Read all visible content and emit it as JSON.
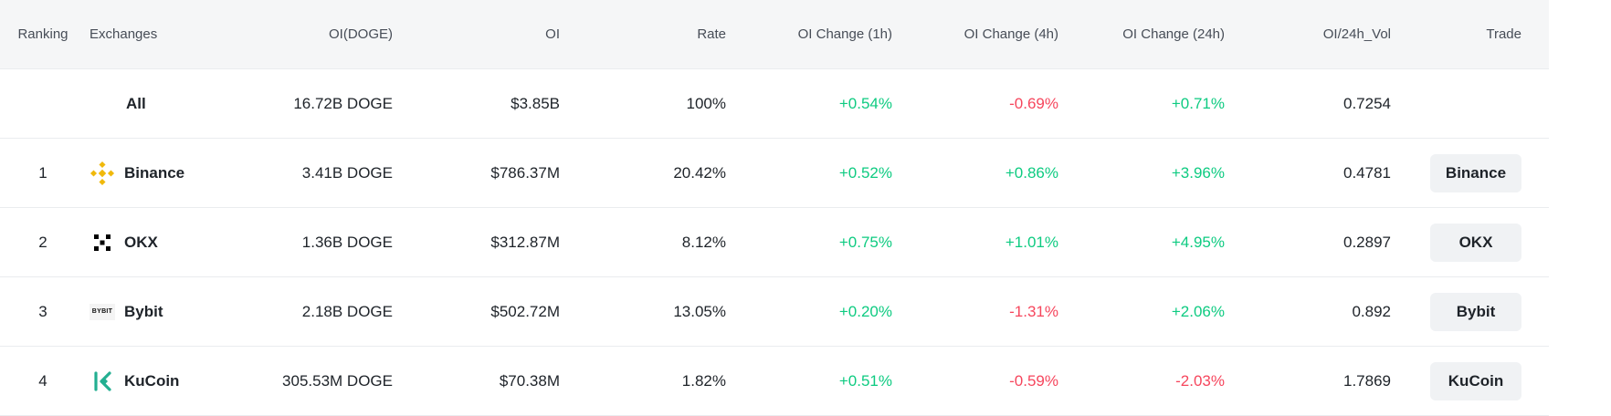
{
  "header": {
    "ranking": "Ranking",
    "exchanges": "Exchanges",
    "oi_doge": "OI(DOGE)",
    "oi": "OI",
    "rate": "Rate",
    "oi_change_1h": "OI Change (1h)",
    "oi_change_4h": "OI Change (4h)",
    "oi_change_24h": "OI Change (24h)",
    "oi_24h_vol": "OI/24h_Vol",
    "trade": "Trade"
  },
  "colors": {
    "positive": "#0ecb81",
    "negative": "#f6465d",
    "header_bg": "#f5f6f7"
  },
  "rows": [
    {
      "rank": "",
      "exchange": "All",
      "oi_doge": "16.72B DOGE",
      "oi": "$3.85B",
      "rate": "100%",
      "ch1": "+0.54%",
      "ch4": "-0.69%",
      "ch24": "+0.71%",
      "vol": "0.7254",
      "trade": ""
    },
    {
      "rank": "1",
      "exchange": "Binance",
      "icon": "binance-logo-icon",
      "oi_doge": "3.41B DOGE",
      "oi": "$786.37M",
      "rate": "20.42%",
      "ch1": "+0.52%",
      "ch4": "+0.86%",
      "ch24": "+3.96%",
      "vol": "0.4781",
      "trade": "Binance"
    },
    {
      "rank": "2",
      "exchange": "OKX",
      "icon": "okx-logo-icon",
      "oi_doge": "1.36B DOGE",
      "oi": "$312.87M",
      "rate": "8.12%",
      "ch1": "+0.75%",
      "ch4": "+1.01%",
      "ch24": "+4.95%",
      "vol": "0.2897",
      "trade": "OKX"
    },
    {
      "rank": "3",
      "exchange": "Bybit",
      "icon": "bybit-logo-icon",
      "icon_text": "BYBIT",
      "oi_doge": "2.18B DOGE",
      "oi": "$502.72M",
      "rate": "13.05%",
      "ch1": "+0.20%",
      "ch4": "-1.31%",
      "ch24": "+2.06%",
      "vol": "0.892",
      "trade": "Bybit"
    },
    {
      "rank": "4",
      "exchange": "KuCoin",
      "icon": "kucoin-logo-icon",
      "oi_doge": "305.53M DOGE",
      "oi": "$70.38M",
      "rate": "1.82%",
      "ch1": "+0.51%",
      "ch4": "-0.59%",
      "ch24": "-2.03%",
      "vol": "1.7869",
      "trade": "KuCoin"
    }
  ]
}
